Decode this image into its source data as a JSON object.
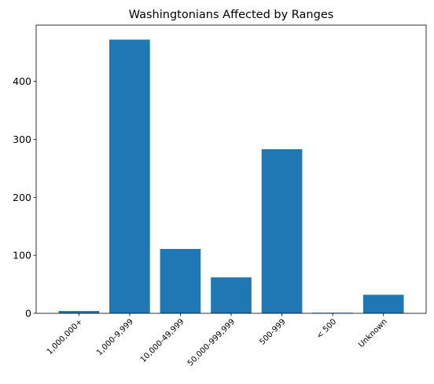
{
  "chart_data": {
    "type": "bar",
    "title": "Washingtonians Affected by Ranges",
    "xlabel": "",
    "ylabel": "",
    "categories": [
      "1,000,000+",
      "1,000-9,999",
      "10,000-49,999",
      "50,000-999,999",
      "500-999",
      "< 500",
      "Unknown"
    ],
    "values": [
      4,
      472,
      111,
      62,
      283,
      1,
      32
    ],
    "ylim": [
      0,
      497
    ],
    "yticks": [
      0,
      100,
      200,
      300,
      400
    ],
    "bar_color": "#1f77b4",
    "grid": false
  }
}
